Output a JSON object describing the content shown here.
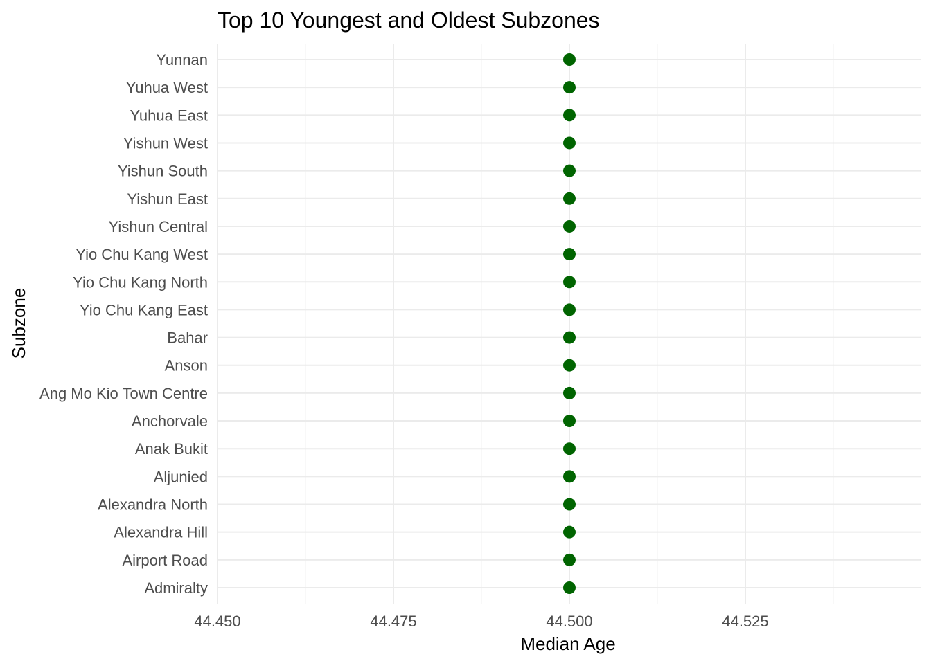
{
  "chart_data": {
    "type": "scatter",
    "title": "Top 10 Youngest and Oldest Subzones",
    "xlabel": "Median Age",
    "ylabel": "Subzone",
    "xlim": [
      44.45,
      44.55
    ],
    "x_ticks": [
      44.45,
      44.475,
      44.5,
      44.525
    ],
    "x_tick_labels": [
      "44.450",
      "44.475",
      "44.500",
      "44.525"
    ],
    "x_minor_ticks": [
      44.4625,
      44.4875,
      44.5125,
      44.5375
    ],
    "grid": true,
    "legend": "none",
    "point_color": "#006400",
    "categories": [
      "Yunnan",
      "Yuhua West",
      "Yuhua East",
      "Yishun West",
      "Yishun South",
      "Yishun East",
      "Yishun Central",
      "Yio Chu Kang West",
      "Yio Chu Kang North",
      "Yio Chu Kang East",
      "Bahar",
      "Anson",
      "Ang Mo Kio Town Centre",
      "Anchorvale",
      "Anak Bukit",
      "Aljunied",
      "Alexandra North",
      "Alexandra Hill",
      "Airport Road",
      "Admiralty"
    ],
    "values": [
      44.5,
      44.5,
      44.5,
      44.5,
      44.5,
      44.5,
      44.5,
      44.5,
      44.5,
      44.5,
      44.5,
      44.5,
      44.5,
      44.5,
      44.5,
      44.5,
      44.5,
      44.5,
      44.5,
      44.5
    ]
  }
}
